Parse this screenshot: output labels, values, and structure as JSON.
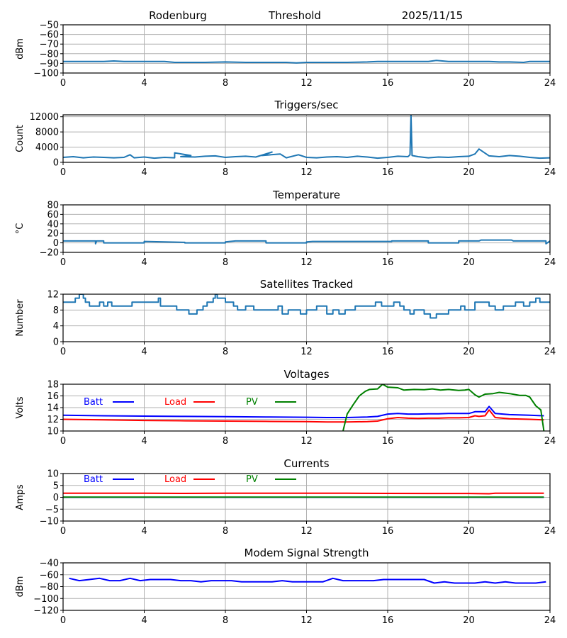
{
  "header": {
    "station": "Rodenburg",
    "panel_name": "Threshold",
    "date": "2025/11/15"
  },
  "colors": {
    "default_series": "#1f77b4",
    "batt": "#0000ff",
    "load": "#ff0000",
    "pv": "#008000",
    "grid": "#b0b0b0",
    "axes": "#000000"
  },
  "chart_data": [
    {
      "id": "threshold",
      "type": "line",
      "title": "",
      "xlabel": "",
      "ylabel": "dBm",
      "xlim": [
        0,
        24
      ],
      "ylim": [
        -100,
        -50
      ],
      "xticks": [
        0,
        4,
        8,
        12,
        16,
        20,
        24
      ],
      "yticks": [
        -100,
        -90,
        -80,
        -70,
        -60,
        -50
      ],
      "ytick_labels": [
        "−100",
        "−90",
        "−80",
        "−70",
        "−60",
        "−50"
      ],
      "grid": true,
      "series": [
        {
          "name": "threshold",
          "color": "#1f77b4",
          "x": [
            0,
            1,
            2,
            2.5,
            3,
            3.6,
            4,
            4.5,
            5,
            5.5,
            6,
            7,
            8,
            9,
            10,
            11,
            11.5,
            12,
            13,
            14,
            15,
            15.5,
            16,
            17,
            18,
            18.4,
            19,
            20,
            21,
            21.5,
            22,
            22.7,
            23,
            24
          ],
          "y": [
            -88,
            -88,
            -88,
            -87.5,
            -88,
            -88,
            -88,
            -88,
            -88,
            -89,
            -89,
            -89,
            -88.5,
            -89,
            -89,
            -89,
            -89.5,
            -89,
            -89,
            -89,
            -88.5,
            -88,
            -88,
            -88,
            -88,
            -87,
            -88,
            -88,
            -88,
            -88.5,
            -88.5,
            -89,
            -88,
            -88
          ]
        }
      ]
    },
    {
      "id": "triggers",
      "type": "line",
      "title": "Triggers/sec",
      "xlabel": "",
      "ylabel": "Count",
      "xlim": [
        0,
        24
      ],
      "ylim": [
        0,
        12500
      ],
      "xticks": [
        0,
        4,
        8,
        12,
        16,
        20,
        24
      ],
      "yticks": [
        0,
        4000,
        8000,
        12000
      ],
      "ytick_labels": [
        "0",
        "4000",
        "8000",
        "12000"
      ],
      "grid": true,
      "series": [
        {
          "name": "triggers",
          "color": "#1f77b4",
          "x": [
            0,
            0.5,
            1,
            1.5,
            2,
            2.5,
            3,
            3.3,
            3.5,
            4,
            4.5,
            5,
            5.5,
            5.5,
            6.3,
            5.8,
            6.5,
            7,
            7.5,
            8,
            8.5,
            9,
            9.5,
            10.3,
            9.8,
            10.7,
            11,
            11.6,
            12,
            12.5,
            13,
            13.5,
            14,
            14.5,
            15,
            15.5,
            16,
            16.5,
            17,
            17.1,
            17.15,
            17.2,
            17.5,
            18,
            18.5,
            19,
            19.5,
            20,
            20.3,
            20.5,
            21,
            21.5,
            22,
            22.5,
            23,
            23.5,
            24
          ],
          "y": [
            1300,
            1500,
            1200,
            1400,
            1300,
            1200,
            1300,
            2000,
            1200,
            1400,
            1100,
            1300,
            1200,
            2500,
            1800,
            1500,
            1400,
            1600,
            1700,
            1300,
            1500,
            1600,
            1400,
            2700,
            1800,
            2200,
            1200,
            2000,
            1300,
            1200,
            1400,
            1500,
            1300,
            1600,
            1400,
            1100,
            1300,
            1600,
            1500,
            2000,
            12500,
            1800,
            1500,
            1200,
            1400,
            1300,
            1500,
            1600,
            2200,
            3500,
            1700,
            1500,
            1800,
            1600,
            1300,
            1100,
            1200
          ]
        }
      ]
    },
    {
      "id": "temperature",
      "type": "line",
      "title": "Temperature",
      "xlabel": "",
      "ylabel": "°C",
      "xlim": [
        0,
        24
      ],
      "ylim": [
        -20,
        80
      ],
      "xticks": [
        0,
        4,
        8,
        12,
        16,
        20,
        24
      ],
      "yticks": [
        -20,
        0,
        20,
        40,
        60,
        80
      ],
      "ytick_labels": [
        "−20",
        "0",
        "20",
        "40",
        "60",
        "80"
      ],
      "grid": true,
      "series": [
        {
          "name": "temperature",
          "color": "#1f77b4",
          "x": [
            0,
            1.6,
            1.6,
            1.65,
            2,
            2,
            4,
            4,
            6,
            6,
            8,
            8,
            8.5,
            10,
            10,
            12,
            12,
            12.3,
            16.2,
            16.2,
            18,
            18,
            19.5,
            19.5,
            20.5,
            20.6,
            22.1,
            22.2,
            23.8,
            23.8,
            24
          ],
          "y": [
            4,
            4,
            -2,
            4,
            4,
            0,
            0,
            3,
            1,
            0,
            0,
            2,
            4,
            4,
            0,
            0,
            2,
            3,
            3,
            4,
            4,
            0,
            0,
            4,
            4,
            6,
            6,
            4,
            4,
            -2,
            4
          ]
        }
      ]
    },
    {
      "id": "satellites",
      "type": "line",
      "title": "Satellites Tracked",
      "xlabel": "",
      "ylabel": "Number",
      "xlim": [
        0,
        24
      ],
      "ylim": [
        0,
        12
      ],
      "xticks": [
        0,
        4,
        8,
        12,
        16,
        20,
        24
      ],
      "yticks": [
        0,
        4,
        8,
        12
      ],
      "ytick_labels": [
        "0",
        "4",
        "8",
        "12"
      ],
      "grid": true,
      "series": [
        {
          "name": "satellites",
          "color": "#1f77b4",
          "x": [
            0,
            0.6,
            0.6,
            0.8,
            0.8,
            1.0,
            1.0,
            1.1,
            1.1,
            1.3,
            1.3,
            1.8,
            1.8,
            2.0,
            2.0,
            2.2,
            2.2,
            2.4,
            2.4,
            3.4,
            3.4,
            3.5,
            3.5,
            4.7,
            4.7,
            4.8,
            4.8,
            5.6,
            5.6,
            6.2,
            6.2,
            6.6,
            6.6,
            6.9,
            6.9,
            7.1,
            7.1,
            7.4,
            7.4,
            7.5,
            7.5,
            7.6,
            7.6,
            8.0,
            8.0,
            8.4,
            8.4,
            8.6,
            8.6,
            9.0,
            9.0,
            9.4,
            9.4,
            10.6,
            10.6,
            10.8,
            10.8,
            11.1,
            11.1,
            11.7,
            11.7,
            12.0,
            12.0,
            12.5,
            12.5,
            13.0,
            13.0,
            13.3,
            13.3,
            13.6,
            13.6,
            13.9,
            13.9,
            14.4,
            14.4,
            15.2,
            15.2,
            15.4,
            15.4,
            15.7,
            15.7,
            16.3,
            16.3,
            16.6,
            16.6,
            16.8,
            16.8,
            17.1,
            17.1,
            17.3,
            17.3,
            17.8,
            17.8,
            18.1,
            18.1,
            18.4,
            18.4,
            19.0,
            19.0,
            19.6,
            19.6,
            19.8,
            19.8,
            20.3,
            20.3,
            21.0,
            21.0,
            21.3,
            21.3,
            21.7,
            21.7,
            21.9,
            21.9,
            22.3,
            22.3,
            22.7,
            22.7,
            23.0,
            23.0,
            23.3,
            23.3,
            23.5,
            23.5,
            23.7,
            23.7,
            24
          ],
          "y": [
            10,
            10,
            11,
            11,
            12,
            12,
            11,
            11,
            10,
            10,
            9,
            9,
            10,
            10,
            9,
            9,
            10,
            10,
            9,
            9,
            10,
            10,
            10,
            10,
            11,
            11,
            9,
            9,
            8,
            8,
            7,
            7,
            8,
            8,
            9,
            9,
            10,
            10,
            11,
            11,
            12,
            12,
            11,
            11,
            10,
            10,
            9,
            9,
            8,
            8,
            9,
            9,
            8,
            8,
            9,
            9,
            7,
            7,
            8,
            8,
            7,
            7,
            8,
            8,
            9,
            9,
            7,
            7,
            8,
            8,
            7,
            7,
            8,
            8,
            9,
            9,
            9,
            9,
            10,
            10,
            9,
            9,
            10,
            10,
            9,
            9,
            8,
            8,
            7,
            7,
            8,
            8,
            7,
            7,
            6,
            6,
            7,
            7,
            8,
            8,
            9,
            9,
            8,
            8,
            10,
            10,
            9,
            9,
            8,
            8,
            9,
            9,
            9,
            9,
            10,
            10,
            9,
            9,
            10,
            10,
            11,
            11,
            10,
            10,
            10,
            10
          ]
        }
      ]
    },
    {
      "id": "voltages",
      "type": "line",
      "title": "Voltages",
      "xlabel": "",
      "ylabel": "Volts",
      "xlim": [
        0,
        24
      ],
      "ylim": [
        10,
        18
      ],
      "xticks": [
        0,
        4,
        8,
        12,
        16,
        20,
        24
      ],
      "yticks": [
        10,
        12,
        14,
        16,
        18
      ],
      "ytick_labels": [
        "10",
        "12",
        "14",
        "16",
        "18"
      ],
      "grid": true,
      "legend": "inline-top-left",
      "series": [
        {
          "name": "Batt",
          "color": "#0000ff",
          "x": [
            0,
            2,
            4,
            6,
            8,
            10,
            12,
            13,
            14,
            15,
            15.5,
            16,
            16.5,
            17,
            17.5,
            18,
            18.5,
            19,
            19.5,
            20,
            20.3,
            20.5,
            20.8,
            21,
            21.3,
            22,
            23,
            23.7
          ],
          "y": [
            12.7,
            12.6,
            12.55,
            12.5,
            12.45,
            12.4,
            12.35,
            12.3,
            12.3,
            12.4,
            12.5,
            12.9,
            13.0,
            12.9,
            12.9,
            12.95,
            12.95,
            13.0,
            13.0,
            13.0,
            13.3,
            13.3,
            13.3,
            14.2,
            13.0,
            12.8,
            12.7,
            12.6
          ]
        },
        {
          "name": "Load",
          "color": "#ff0000",
          "x": [
            0,
            2,
            4,
            6,
            8,
            10,
            12,
            13,
            14,
            15,
            15.5,
            16,
            16.5,
            17,
            17.5,
            18,
            18.5,
            19,
            19.5,
            20,
            20.3,
            20.5,
            20.8,
            21,
            21.3,
            22,
            23,
            23.7
          ],
          "y": [
            12.0,
            11.9,
            11.8,
            11.75,
            11.7,
            11.65,
            11.6,
            11.55,
            11.55,
            11.6,
            11.7,
            12.1,
            12.3,
            12.2,
            12.15,
            12.2,
            12.2,
            12.25,
            12.25,
            12.3,
            12.6,
            12.5,
            12.6,
            13.6,
            12.3,
            12.1,
            12.0,
            11.9
          ]
        },
        {
          "name": "PV",
          "color": "#008000",
          "x": [
            13.8,
            14.0,
            14.3,
            14.6,
            14.9,
            15.1,
            15.5,
            15.75,
            16.0,
            16.5,
            16.8,
            17.3,
            17.8,
            18.2,
            18.6,
            19.0,
            19.5,
            19.8,
            20.0,
            20.3,
            20.5,
            20.8,
            21.2,
            21.5,
            22.0,
            22.5,
            22.8,
            23.0,
            23.3,
            23.55,
            23.7
          ],
          "y": [
            10.0,
            12.9,
            14.5,
            16.0,
            16.8,
            17.1,
            17.2,
            18.0,
            17.5,
            17.4,
            17.0,
            17.1,
            17.05,
            17.2,
            17.0,
            17.1,
            16.95,
            17.0,
            17.1,
            16.2,
            15.8,
            16.3,
            16.4,
            16.6,
            16.4,
            16.1,
            16.1,
            15.8,
            14.3,
            13.6,
            10.0
          ]
        }
      ]
    },
    {
      "id": "currents",
      "type": "line",
      "title": "Currents",
      "xlabel": "",
      "ylabel": "Amps",
      "xlim": [
        0,
        24
      ],
      "ylim": [
        -10,
        10
      ],
      "xticks": [
        0,
        4,
        8,
        12,
        16,
        20,
        24
      ],
      "yticks": [
        -10,
        -5,
        0,
        5,
        10
      ],
      "ytick_labels": [
        "−10",
        "−5",
        "0",
        "5",
        "10"
      ],
      "grid": true,
      "legend": "inline-top-left",
      "series": [
        {
          "name": "Batt",
          "color": "#0000ff",
          "x": [
            0,
            23.7
          ],
          "y": [
            0,
            0
          ]
        },
        {
          "name": "Load",
          "color": "#ff0000",
          "x": [
            0,
            2,
            4,
            6,
            8,
            10,
            12,
            14,
            16,
            18,
            20,
            21,
            21.3,
            22,
            23.7
          ],
          "y": [
            1.7,
            1.7,
            1.7,
            1.65,
            1.7,
            1.7,
            1.7,
            1.7,
            1.65,
            1.6,
            1.6,
            1.5,
            1.7,
            1.7,
            1.7
          ]
        },
        {
          "name": "PV",
          "color": "#008000",
          "x": [
            0,
            23.7
          ],
          "y": [
            0.1,
            0.1
          ]
        }
      ]
    },
    {
      "id": "modem",
      "type": "line",
      "title": "Modem Signal Strength",
      "xlabel": "",
      "ylabel": "dBm",
      "xlim": [
        0,
        24
      ],
      "ylim": [
        -120,
        -40
      ],
      "xticks": [
        0,
        4,
        8,
        12,
        16,
        20,
        24
      ],
      "yticks": [
        -120,
        -100,
        -80,
        -60,
        -40
      ],
      "ytick_labels": [
        "−120",
        "−100",
        "−80",
        "−60",
        "−40"
      ],
      "grid": true,
      "series": [
        {
          "name": "modem",
          "color": "#0000ff",
          "x": [
            0.3,
            0.8,
            1.3,
            1.8,
            2.3,
            2.8,
            3.3,
            3.8,
            4.3,
            4.8,
            5.3,
            5.8,
            6.3,
            6.8,
            7.3,
            7.8,
            8.3,
            8.8,
            9.3,
            9.8,
            10.3,
            10.8,
            11.3,
            11.8,
            12.3,
            12.8,
            13.3,
            13.8,
            14.3,
            14.8,
            15.3,
            15.8,
            16.3,
            16.8,
            17.3,
            17.8,
            18.3,
            18.8,
            19.3,
            19.8,
            20.3,
            20.8,
            21.3,
            21.8,
            22.3,
            22.8,
            23.3,
            23.8
          ],
          "y": [
            -66,
            -70,
            -68,
            -66,
            -70,
            -70,
            -66,
            -70,
            -68,
            -68,
            -68,
            -70,
            -70,
            -72,
            -70,
            -70,
            -70,
            -72,
            -72,
            -72,
            -72,
            -70,
            -72,
            -72,
            -72,
            -72,
            -66,
            -70,
            -70,
            -70,
            -70,
            -68,
            -68,
            -68,
            -68,
            -68,
            -74,
            -72,
            -74,
            -74,
            -74,
            -72,
            -74,
            -72,
            -74,
            -74,
            -74,
            -72
          ]
        }
      ]
    }
  ],
  "legend_labels": {
    "batt": "Batt",
    "load": "Load",
    "pv": "PV"
  }
}
